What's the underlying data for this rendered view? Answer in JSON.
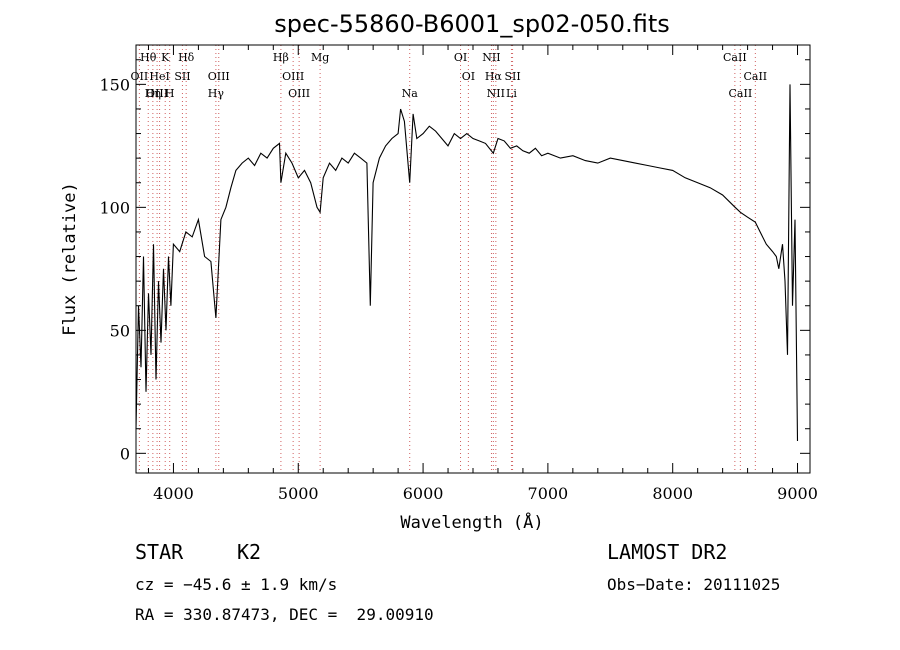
{
  "chart_data": {
    "type": "line",
    "title": "spec-55860-B6001_sp02-050.fits",
    "xlabel": "Wavelength (Å)",
    "ylabel": "Flux (relative)",
    "xlim": [
      3700,
      9100
    ],
    "ylim": [
      -8,
      166
    ],
    "x_ticks": [
      4000,
      5000,
      6000,
      7000,
      8000,
      9000
    ],
    "y_ticks": [
      0,
      50,
      100,
      150
    ],
    "x_tick_labels": [
      "4000",
      "5000",
      "6000",
      "7000",
      "8000",
      "9000"
    ],
    "y_tick_labels": [
      "0",
      "50",
      "100",
      "150"
    ],
    "grid": false,
    "line_color": "#000000",
    "marker_color": "#d06060",
    "series": [
      {
        "x": [
          3700,
          3720,
          3740,
          3760,
          3780,
          3800,
          3820,
          3840,
          3860,
          3880,
          3900,
          3920,
          3940,
          3960,
          3980,
          4000,
          4050,
          4100,
          4150,
          4200,
          4250,
          4300,
          4340,
          4380,
          4420,
          4460,
          4500,
          4550,
          4600,
          4650,
          4700,
          4750,
          4800,
          4850,
          4861,
          4900,
          4950,
          5000,
          5050,
          5100,
          5150,
          5175,
          5200,
          5250,
          5300,
          5350,
          5400,
          5450,
          5500,
          5550,
          5577,
          5600,
          5650,
          5700,
          5750,
          5800,
          5820,
          5850,
          5893,
          5920,
          5950,
          6000,
          6050,
          6100,
          6150,
          6200,
          6250,
          6300,
          6350,
          6400,
          6450,
          6500,
          6563,
          6600,
          6650,
          6700,
          6750,
          6800,
          6850,
          6900,
          6950,
          7000,
          7100,
          7200,
          7300,
          7400,
          7500,
          7600,
          7700,
          7800,
          7900,
          8000,
          8100,
          8200,
          8300,
          8400,
          8500,
          8542,
          8600,
          8662,
          8700,
          8750,
          8800,
          8830,
          8850,
          8880,
          8900,
          8920,
          8940,
          8960,
          8980,
          9000
        ],
        "y": [
          10,
          60,
          35,
          80,
          25,
          65,
          40,
          85,
          30,
          70,
          45,
          75,
          50,
          80,
          60,
          85,
          82,
          90,
          88,
          95,
          80,
          78,
          55,
          95,
          100,
          108,
          115,
          118,
          120,
          117,
          122,
          120,
          124,
          126,
          110,
          122,
          118,
          112,
          115,
          110,
          100,
          98,
          112,
          118,
          115,
          120,
          118,
          122,
          120,
          118,
          60,
          110,
          120,
          125,
          128,
          130,
          140,
          135,
          110,
          138,
          128,
          130,
          133,
          131,
          128,
          125,
          130,
          128,
          130,
          128,
          127,
          126,
          122,
          128,
          127,
          124,
          125,
          123,
          122,
          124,
          121,
          122,
          120,
          121,
          119,
          118,
          120,
          119,
          118,
          117,
          116,
          115,
          112,
          110,
          108,
          105,
          100,
          98,
          96,
          94,
          90,
          85,
          82,
          80,
          75,
          85,
          70,
          40,
          150,
          60,
          95,
          5
        ]
      }
    ],
    "spectral_lines": [
      {
        "label": "Hθ",
        "x": 3798,
        "row": 0
      },
      {
        "label": "K",
        "x": 3934,
        "row": 0
      },
      {
        "label": "Hδ",
        "x": 4102,
        "row": 0
      },
      {
        "label": "Hβ",
        "x": 4861,
        "row": 0
      },
      {
        "label": "Mg",
        "x": 5175,
        "row": 0
      },
      {
        "label": "OI",
        "x": 6300,
        "row": 0
      },
      {
        "label": "NII",
        "x": 6548,
        "row": 0
      },
      {
        "label": "CaII",
        "x": 8498,
        "row": 0
      },
      {
        "label": "OII",
        "x": 3727,
        "row": 1
      },
      {
        "label": "HeI",
        "x": 3889,
        "row": 1
      },
      {
        "label": "SII",
        "x": 4072,
        "row": 1
      },
      {
        "label": "OIII",
        "x": 4363,
        "row": 1
      },
      {
        "label": "OIII",
        "x": 4959,
        "row": 1
      },
      {
        "label": "OI",
        "x": 6363,
        "row": 1
      },
      {
        "label": "Hα",
        "x": 6563,
        "row": 1
      },
      {
        "label": "SII",
        "x": 6717,
        "row": 1
      },
      {
        "label": "CaII",
        "x": 8662,
        "row": 1
      },
      {
        "label": "OIII",
        "x": 3869,
        "row": 2
      },
      {
        "label": "Hη",
        "x": 3835,
        "row": 2
      },
      {
        "label": "H",
        "x": 3970,
        "row": 2
      },
      {
        "label": "Hγ",
        "x": 4340,
        "row": 2
      },
      {
        "label": "OIII",
        "x": 5007,
        "row": 2
      },
      {
        "label": "Na",
        "x": 5893,
        "row": 2
      },
      {
        "label": "NII",
        "x": 6583,
        "row": 2
      },
      {
        "label": "Li",
        "x": 6708,
        "row": 2
      },
      {
        "label": "CaII",
        "x": 8542,
        "row": 2
      }
    ]
  },
  "info": {
    "class": "STAR",
    "subclass": "K2",
    "survey": "LAMOST DR2",
    "cz": "cz = −45.6 ± 1.9 km/s",
    "obs_date": "Obs−Date: 20111025",
    "coords": "RA = 330.87473, DEC =  29.00910"
  }
}
